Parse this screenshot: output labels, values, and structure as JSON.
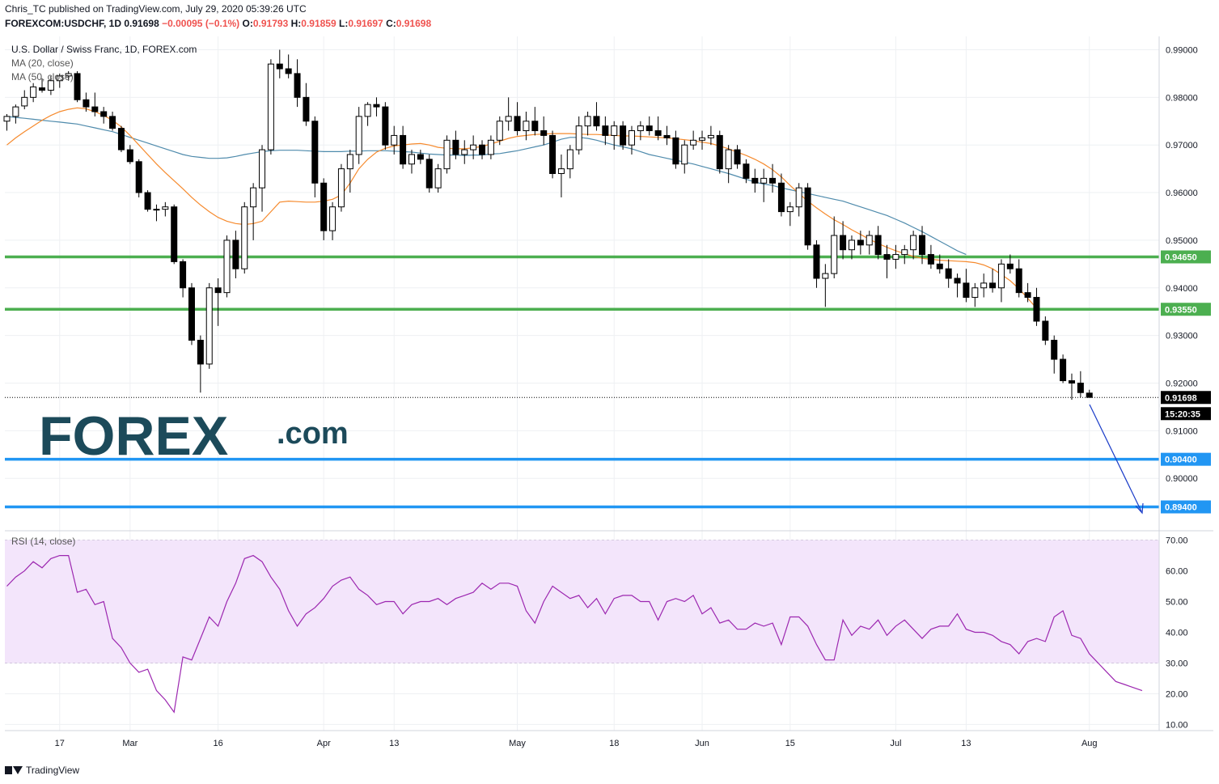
{
  "header": {
    "publisher": "Chris_TC published on TradingView.com, July 29, 2020 05:39:26 UTC",
    "symbol": "FOREXCOM:USDCHF, 1D",
    "last": "0.91698",
    "change": "−0.00095 (−0.1%)",
    "o_label": "O:",
    "o_value": "0.91793",
    "h_label": "H:",
    "h_value": "0.91859",
    "l_label": "L:",
    "l_value": "0.91697",
    "c_label": "C:",
    "c_value": "0.91698"
  },
  "legend": {
    "title": "U.S. Dollar / Swiss Franc, 1D, FOREX.com",
    "ma20": "MA (20, close)",
    "ma50": "MA (50, close)",
    "rsi": "RSI (14, close)"
  },
  "watermark": {
    "brand": "FOREX",
    "suffix": ".com"
  },
  "footer": {
    "brand": "TradingView"
  },
  "colors": {
    "up_candle": "#ffffff",
    "down_candle": "#000000",
    "ma20": "#f68a2d",
    "ma50": "#4f8bac",
    "support_green": "#4caf50",
    "support_blue": "#2196f3",
    "rsi_line": "#9c27b0",
    "rsi_band": "#f3e5fb"
  },
  "chart_data": {
    "type": "candlestick",
    "price_scale": {
      "ticks": [
        "0.99000",
        "0.98000",
        "0.97000",
        "0.96000",
        "0.95000",
        "0.94000",
        "0.93000",
        "0.92000",
        "0.91000",
        "0.90000"
      ],
      "range": [
        0.8895,
        0.9928
      ]
    },
    "current_price": "0.91698",
    "countdown": "15:20:35",
    "levels": [
      {
        "label": "0.94650",
        "value": 0.9465,
        "color": "#4caf50"
      },
      {
        "label": "0.93550",
        "value": 0.9355,
        "color": "#4caf50"
      },
      {
        "label": "0.90400",
        "value": 0.904,
        "color": "#2196f3"
      },
      {
        "label": "0.89400",
        "value": 0.894,
        "color": "#2196f3"
      }
    ],
    "x_ticks": [
      {
        "label": "17",
        "bar": 6
      },
      {
        "label": "Mar",
        "bar": 14
      },
      {
        "label": "16",
        "bar": 24
      },
      {
        "label": "Apr",
        "bar": 36
      },
      {
        "label": "13",
        "bar": 44
      },
      {
        "label": "May",
        "bar": 58
      },
      {
        "label": "18",
        "bar": 69
      },
      {
        "label": "Jun",
        "bar": 79
      },
      {
        "label": "15",
        "bar": 89
      },
      {
        "label": "Jul",
        "bar": 101
      },
      {
        "label": "13",
        "bar": 109
      },
      {
        "label": "Aug",
        "bar": 123
      }
    ],
    "candles": [
      [
        0.975,
        0.9765,
        0.973,
        0.976
      ],
      [
        0.976,
        0.9785,
        0.9745,
        0.978
      ],
      [
        0.9782,
        0.9815,
        0.9775,
        0.98
      ],
      [
        0.98,
        0.983,
        0.979,
        0.9822
      ],
      [
        0.982,
        0.984,
        0.981,
        0.9815
      ],
      [
        0.9815,
        0.9845,
        0.9805,
        0.9835
      ],
      [
        0.9835,
        0.985,
        0.982,
        0.9845
      ],
      [
        0.9845,
        0.9855,
        0.9835,
        0.985
      ],
      [
        0.985,
        0.9855,
        0.979,
        0.9795
      ],
      [
        0.9795,
        0.981,
        0.977,
        0.978
      ],
      [
        0.978,
        0.981,
        0.976,
        0.977
      ],
      [
        0.977,
        0.978,
        0.9745,
        0.976
      ],
      [
        0.976,
        0.977,
        0.973,
        0.9735
      ],
      [
        0.9735,
        0.974,
        0.9685,
        0.969
      ],
      [
        0.969,
        0.97,
        0.966,
        0.9665
      ],
      [
        0.9665,
        0.967,
        0.959,
        0.96
      ],
      [
        0.96,
        0.9605,
        0.956,
        0.9565
      ],
      [
        0.9565,
        0.9575,
        0.954,
        0.9565
      ],
      [
        0.9565,
        0.958,
        0.955,
        0.957
      ],
      [
        0.957,
        0.9575,
        0.945,
        0.9455
      ],
      [
        0.9455,
        0.946,
        0.938,
        0.94
      ],
      [
        0.94,
        0.941,
        0.928,
        0.929
      ],
      [
        0.929,
        0.93,
        0.918,
        0.924
      ],
      [
        0.924,
        0.941,
        0.923,
        0.94
      ],
      [
        0.94,
        0.942,
        0.932,
        0.939
      ],
      [
        0.939,
        0.951,
        0.938,
        0.95
      ],
      [
        0.95,
        0.952,
        0.942,
        0.944
      ],
      [
        0.944,
        0.958,
        0.943,
        0.957
      ],
      [
        0.957,
        0.962,
        0.95,
        0.961
      ],
      [
        0.961,
        0.97,
        0.956,
        0.969
      ],
      [
        0.969,
        0.988,
        0.968,
        0.987
      ],
      [
        0.987,
        0.99,
        0.984,
        0.986
      ],
      [
        0.986,
        0.989,
        0.984,
        0.985
      ],
      [
        0.985,
        0.988,
        0.978,
        0.98
      ],
      [
        0.98,
        0.983,
        0.974,
        0.975
      ],
      [
        0.975,
        0.976,
        0.959,
        0.962
      ],
      [
        0.962,
        0.963,
        0.95,
        0.952
      ],
      [
        0.952,
        0.958,
        0.95,
        0.957
      ],
      [
        0.957,
        0.966,
        0.956,
        0.965
      ],
      [
        0.965,
        0.969,
        0.96,
        0.968
      ],
      [
        0.968,
        0.978,
        0.966,
        0.976
      ],
      [
        0.976,
        0.979,
        0.974,
        0.9785
      ],
      [
        0.9785,
        0.98,
        0.976,
        0.978
      ],
      [
        0.978,
        0.979,
        0.969,
        0.97
      ],
      [
        0.97,
        0.974,
        0.968,
        0.972
      ],
      [
        0.972,
        0.974,
        0.965,
        0.966
      ],
      [
        0.966,
        0.969,
        0.964,
        0.968
      ],
      [
        0.968,
        0.969,
        0.966,
        0.967
      ],
      [
        0.967,
        0.968,
        0.96,
        0.961
      ],
      [
        0.961,
        0.966,
        0.96,
        0.965
      ],
      [
        0.965,
        0.972,
        0.964,
        0.971
      ],
      [
        0.971,
        0.973,
        0.967,
        0.968
      ],
      [
        0.968,
        0.971,
        0.966,
        0.969
      ],
      [
        0.969,
        0.972,
        0.967,
        0.97
      ],
      [
        0.97,
        0.971,
        0.967,
        0.968
      ],
      [
        0.968,
        0.972,
        0.967,
        0.971
      ],
      [
        0.971,
        0.976,
        0.97,
        0.975
      ],
      [
        0.975,
        0.98,
        0.973,
        0.976
      ],
      [
        0.976,
        0.979,
        0.972,
        0.973
      ],
      [
        0.973,
        0.977,
        0.971,
        0.975
      ],
      [
        0.975,
        0.978,
        0.972,
        0.973
      ],
      [
        0.973,
        0.976,
        0.97,
        0.972
      ],
      [
        0.972,
        0.973,
        0.963,
        0.964
      ],
      [
        0.964,
        0.968,
        0.959,
        0.965
      ],
      [
        0.965,
        0.97,
        0.963,
        0.969
      ],
      [
        0.969,
        0.976,
        0.968,
        0.974
      ],
      [
        0.974,
        0.977,
        0.972,
        0.976
      ],
      [
        0.976,
        0.979,
        0.973,
        0.974
      ],
      [
        0.974,
        0.976,
        0.97,
        0.972
      ],
      [
        0.972,
        0.975,
        0.969,
        0.974
      ],
      [
        0.974,
        0.975,
        0.969,
        0.97
      ],
      [
        0.97,
        0.974,
        0.968,
        0.973
      ],
      [
        0.973,
        0.975,
        0.971,
        0.974
      ],
      [
        0.974,
        0.976,
        0.972,
        0.973
      ],
      [
        0.973,
        0.976,
        0.971,
        0.972
      ],
      [
        0.972,
        0.974,
        0.97,
        0.9715
      ],
      [
        0.9715,
        0.973,
        0.965,
        0.966
      ],
      [
        0.966,
        0.971,
        0.964,
        0.97
      ],
      [
        0.97,
        0.973,
        0.969,
        0.971
      ],
      [
        0.971,
        0.973,
        0.969,
        0.9715
      ],
      [
        0.9715,
        0.974,
        0.97,
        0.972
      ],
      [
        0.972,
        0.973,
        0.964,
        0.965
      ],
      [
        0.965,
        0.97,
        0.962,
        0.969
      ],
      [
        0.969,
        0.97,
        0.965,
        0.966
      ],
      [
        0.966,
        0.967,
        0.962,
        0.963
      ],
      [
        0.963,
        0.965,
        0.96,
        0.962
      ],
      [
        0.962,
        0.965,
        0.958,
        0.963
      ],
      [
        0.963,
        0.966,
        0.96,
        0.962
      ],
      [
        0.962,
        0.964,
        0.955,
        0.956
      ],
      [
        0.956,
        0.958,
        0.953,
        0.957
      ],
      [
        0.957,
        0.962,
        0.955,
        0.961
      ],
      [
        0.961,
        0.962,
        0.948,
        0.949
      ],
      [
        0.949,
        0.95,
        0.94,
        0.942
      ],
      [
        0.942,
        0.945,
        0.936,
        0.943
      ],
      [
        0.943,
        0.955,
        0.942,
        0.951
      ],
      [
        0.951,
        0.954,
        0.946,
        0.948
      ],
      [
        0.948,
        0.951,
        0.946,
        0.95
      ],
      [
        0.95,
        0.952,
        0.947,
        0.949
      ],
      [
        0.949,
        0.952,
        0.947,
        0.951
      ],
      [
        0.951,
        0.953,
        0.946,
        0.947
      ],
      [
        0.947,
        0.949,
        0.942,
        0.946
      ],
      [
        0.946,
        0.949,
        0.944,
        0.947
      ],
      [
        0.947,
        0.949,
        0.945,
        0.948
      ],
      [
        0.948,
        0.952,
        0.946,
        0.951
      ],
      [
        0.951,
        0.953,
        0.945,
        0.947
      ],
      [
        0.947,
        0.949,
        0.944,
        0.945
      ],
      [
        0.945,
        0.947,
        0.943,
        0.944
      ],
      [
        0.944,
        0.946,
        0.94,
        0.942
      ],
      [
        0.942,
        0.943,
        0.938,
        0.941
      ],
      [
        0.941,
        0.944,
        0.937,
        0.938
      ],
      [
        0.938,
        0.941,
        0.936,
        0.94
      ],
      [
        0.94,
        0.943,
        0.938,
        0.941
      ],
      [
        0.941,
        0.944,
        0.939,
        0.94
      ],
      [
        0.94,
        0.946,
        0.937,
        0.945
      ],
      [
        0.945,
        0.947,
        0.943,
        0.944
      ],
      [
        0.944,
        0.946,
        0.938,
        0.939
      ],
      [
        0.939,
        0.941,
        0.937,
        0.938
      ],
      [
        0.938,
        0.94,
        0.932,
        0.933
      ],
      [
        0.933,
        0.934,
        0.928,
        0.929
      ],
      [
        0.929,
        0.93,
        0.922,
        0.925
      ],
      [
        0.925,
        0.926,
        0.92,
        0.9205
      ],
      [
        0.9205,
        0.922,
        0.9165,
        0.92
      ],
      [
        0.92,
        0.9225,
        0.917,
        0.918
      ],
      [
        0.9179,
        0.9186,
        0.917,
        0.917
      ]
    ],
    "ma20": [
      0.97,
      0.9715,
      0.9728,
      0.974,
      0.9752,
      0.9762,
      0.977,
      0.9775,
      0.9778,
      0.9776,
      0.977,
      0.9762,
      0.9752,
      0.9738,
      0.972,
      0.97,
      0.968,
      0.966,
      0.9642,
      0.9625,
      0.9608,
      0.959,
      0.9574,
      0.956,
      0.9548,
      0.954,
      0.9535,
      0.9533,
      0.9535,
      0.954,
      0.956,
      0.958,
      0.9582,
      0.9581,
      0.958,
      0.958,
      0.9582,
      0.9586,
      0.9595,
      0.962,
      0.965,
      0.967,
      0.9685,
      0.9693,
      0.9698,
      0.97,
      0.9702,
      0.9703,
      0.97,
      0.9695,
      0.9693,
      0.9692,
      0.9692,
      0.9694,
      0.9697,
      0.9702,
      0.9708,
      0.9714,
      0.9718,
      0.972,
      0.9722,
      0.9723,
      0.9724,
      0.9724,
      0.9724,
      0.9723,
      0.9722,
      0.9722,
      0.9721,
      0.972,
      0.9719,
      0.9719,
      0.9718,
      0.9717,
      0.9716,
      0.9715,
      0.9713,
      0.9711,
      0.9709,
      0.9706,
      0.9703,
      0.9698,
      0.9692,
      0.9685,
      0.9678,
      0.967,
      0.966,
      0.9648,
      0.9633,
      0.9615,
      0.9598,
      0.9582,
      0.9568,
      0.9555,
      0.9543,
      0.9533,
      0.9522,
      0.9512,
      0.9502,
      0.9493,
      0.9485,
      0.9478,
      0.9472,
      0.9466,
      0.9462,
      0.946,
      0.9458,
      0.9457,
      0.9456,
      0.9455,
      0.9453,
      0.9448,
      0.944,
      0.9428,
      0.9415,
      0.9398,
      0.9378,
      0.9357
    ],
    "ma50": [
      0.976,
      0.9758,
      0.9756,
      0.9754,
      0.9752,
      0.975,
      0.9748,
      0.9746,
      0.9744,
      0.974,
      0.9736,
      0.9732,
      0.9728,
      0.9722,
      0.9716,
      0.971,
      0.9704,
      0.9698,
      0.9692,
      0.9686,
      0.968,
      0.9676,
      0.9674,
      0.9672,
      0.9672,
      0.9673,
      0.9676,
      0.968,
      0.9683,
      0.9686,
      0.9688,
      0.9689,
      0.9689,
      0.9689,
      0.9688,
      0.9687,
      0.9686,
      0.9686,
      0.9686,
      0.9687,
      0.9687,
      0.9688,
      0.9688,
      0.9688,
      0.9687,
      0.9686,
      0.9685,
      0.9683,
      0.9681,
      0.968,
      0.9679,
      0.9679,
      0.9678,
      0.9679,
      0.9679,
      0.9681,
      0.9682,
      0.9685,
      0.9688,
      0.9692,
      0.9696,
      0.97,
      0.9706,
      0.9712,
      0.9716,
      0.9716,
      0.9714,
      0.971,
      0.9705,
      0.97,
      0.9696,
      0.9692,
      0.9686,
      0.968,
      0.9676,
      0.9672,
      0.9668,
      0.9664,
      0.966,
      0.9655,
      0.965,
      0.9645,
      0.964,
      0.9634,
      0.9628,
      0.9622,
      0.9618,
      0.9615,
      0.961,
      0.9606,
      0.9602,
      0.9598,
      0.9594,
      0.959,
      0.9586,
      0.9582,
      0.9576,
      0.957,
      0.9564,
      0.9558,
      0.9552,
      0.9544,
      0.9536,
      0.9527,
      0.9518,
      0.9508,
      0.9498,
      0.9488,
      0.9478,
      0.947
    ],
    "rsi": {
      "ticks": [
        "70.00",
        "60.00",
        "50.00",
        "40.00",
        "30.00",
        "20.00",
        "10.00"
      ],
      "range": [
        8,
        72
      ],
      "band": [
        30,
        70
      ],
      "values": [
        55,
        58,
        60,
        63,
        61,
        64,
        65,
        65,
        53,
        54,
        49,
        50,
        38,
        35,
        30,
        27,
        28,
        21,
        18,
        14,
        32,
        31,
        38,
        45,
        42,
        50,
        56,
        64,
        65,
        63,
        58,
        54,
        47,
        42,
        46,
        48,
        51,
        55,
        57,
        58,
        54,
        52,
        49,
        50,
        50,
        46,
        49,
        50,
        50,
        51,
        49,
        51,
        52,
        53,
        56,
        54,
        56,
        56,
        55,
        47,
        43,
        50,
        55,
        53,
        51,
        52,
        48,
        51,
        46,
        51,
        52,
        52,
        50,
        50,
        44,
        50,
        51,
        50,
        52,
        46,
        48,
        43,
        44,
        41,
        41,
        43,
        42,
        43,
        36,
        45,
        45,
        42,
        36,
        31,
        31,
        44,
        39,
        42,
        41,
        44,
        39,
        42,
        44,
        41,
        38,
        41,
        42,
        42,
        46,
        41,
        40,
        40,
        39,
        37,
        36,
        33,
        37,
        38,
        37,
        45,
        47,
        39,
        38,
        33,
        30,
        27,
        24,
        23,
        22,
        21
      ]
    }
  }
}
